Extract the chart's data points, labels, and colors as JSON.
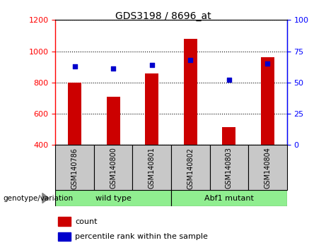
{
  "title": "GDS3198 / 8696_at",
  "samples": [
    "GSM140786",
    "GSM140800",
    "GSM140801",
    "GSM140802",
    "GSM140803",
    "GSM140804"
  ],
  "count_values": [
    800,
    710,
    860,
    1080,
    515,
    960
  ],
  "percentile_values": [
    63,
    61,
    64,
    68,
    52,
    65
  ],
  "ylim_left": [
    400,
    1200
  ],
  "ylim_right": [
    0,
    100
  ],
  "yticks_left": [
    400,
    600,
    800,
    1000,
    1200
  ],
  "yticks_right": [
    0,
    25,
    50,
    75,
    100
  ],
  "bar_color": "#cc0000",
  "dot_color": "#0000cc",
  "group_bg_color": "#c8c8c8",
  "green_color": "#90ee90",
  "legend_count_label": "count",
  "legend_percentile_label": "percentile rank within the sample",
  "genotype_label": "genotype/variation",
  "background_color": "#ffffff"
}
